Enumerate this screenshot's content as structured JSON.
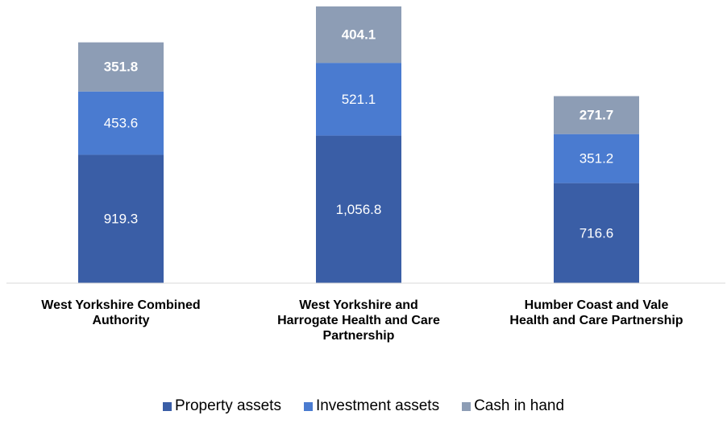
{
  "chart_data": {
    "type": "stacked_bar",
    "categories": [
      "West Yorkshire Combined Authority",
      "West Yorkshire and Harrogate Health and Care Partnership",
      "Humber Coast and Vale Health and Care Partnership"
    ],
    "series": [
      {
        "name": "Property assets",
        "color": "#3a5ea6",
        "values": [
          919.3,
          1056.8,
          716.6
        ],
        "value_labels": [
          "919.3",
          "1,056.8",
          "716.6"
        ]
      },
      {
        "name": "Investment assets",
        "color": "#4a7bd0",
        "values": [
          453.6,
          521.1,
          351.2
        ]
      },
      {
        "name": "Cash in hand",
        "color": "#8d9db5",
        "values": [
          351.8,
          404.1,
          271.7
        ]
      }
    ],
    "legend": "bottom"
  }
}
